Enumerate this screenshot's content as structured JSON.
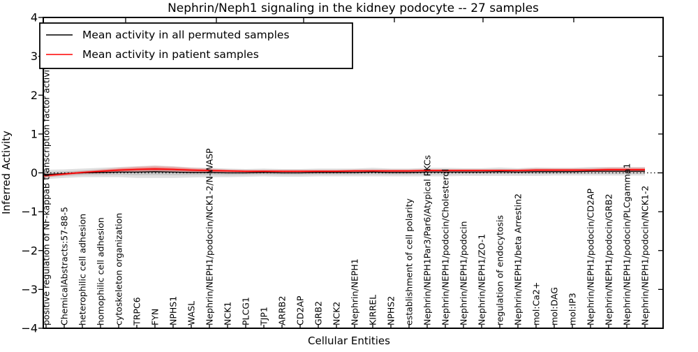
{
  "figure": {
    "title": "Nephrin/Neph1 signaling in the kidney podocyte -- 27 samples",
    "xlabel": "Cellular Entities",
    "ylabel": "Inferred Activity"
  },
  "legend": {
    "items": [
      {
        "label": "Mean activity in all permuted samples",
        "color": "#000000"
      },
      {
        "label": "Mean activity in patient samples",
        "color": "#ff0000"
      }
    ]
  },
  "chart_data": {
    "type": "line",
    "title": "Nephrin/Neph1 signaling in the kidney podocyte -- 27 samples",
    "xlabel": "Cellular Entities",
    "ylabel": "Inferred Activity",
    "ylim": [
      -4,
      4
    ],
    "ytick_labels": [
      "4",
      "3",
      "2",
      "1",
      "0",
      "−1",
      "−2",
      "−3",
      "−4"
    ],
    "ytick_values": [
      4,
      3,
      2,
      1,
      0,
      -1,
      -2,
      -3,
      -4
    ],
    "grid": false,
    "legend_position": "upper left",
    "zero_line": {
      "style": "dotted",
      "color": "#000000",
      "y": 0
    },
    "categories": [
      "positive regulation of NF-kappaB transcription factor activity",
      "ChemicalAbstracts:57-88-5",
      "heterophilic cell adhesion",
      "homophilic cell adhesion",
      "cytoskeleton organization",
      "TRPC6",
      "FYN",
      "NPHS1",
      "WASL",
      "Nephrin/NEPH1/podocin/NCK1-2/N-WASP",
      "NCK1",
      "PLCG1",
      "TJP1",
      "ARRB2",
      "CD2AP",
      "GRB2",
      "NCK2",
      "Nephrin/NEPH1",
      "KIRREL",
      "NPHS2",
      "establishment of cell polarity",
      "Nephrin/NEPH1Par3/Par6/Atypical PKCs",
      "Nephrin/NEPH1/podocin/Cholesterol",
      "Nephrin/NEPH1/podocin",
      "Nephrin/NEPH1/ZO-1",
      "regulation of endocytosis",
      "Nephrin/NEPH1/beta Arrestin2",
      "mol:Ca2+",
      "mol:DAG",
      "mol:IP3",
      "Nephrin/NEPH1/podocin/CD2AP",
      "Nephrin/NEPH1/podocin/GRB2",
      "Nephrin/NEPH1/podocin/PLCgamma1",
      "Nephrin/NEPH1/podocin/NCK1-2"
    ],
    "series": [
      {
        "name": "Mean activity in all permuted samples",
        "color": "#000000",
        "values": [
          -0.04,
          -0.02,
          0.0,
          0.01,
          0.02,
          0.02,
          0.03,
          0.02,
          0.01,
          0.01,
          0.0,
          0.0,
          0.01,
          0.0,
          0.0,
          0.01,
          0.01,
          0.01,
          0.02,
          0.01,
          0.01,
          0.02,
          0.02,
          0.02,
          0.02,
          0.03,
          0.02,
          0.03,
          0.03,
          0.03,
          0.04,
          0.04,
          0.04,
          0.04
        ]
      },
      {
        "name": "Mean activity in patient samples",
        "color": "#ff0000",
        "values": [
          -0.07,
          -0.03,
          0.01,
          0.04,
          0.07,
          0.09,
          0.1,
          0.09,
          0.07,
          0.06,
          0.05,
          0.04,
          0.04,
          0.04,
          0.04,
          0.04,
          0.04,
          0.05,
          0.05,
          0.05,
          0.05,
          0.06,
          0.06,
          0.06,
          0.06,
          0.06,
          0.06,
          0.07,
          0.07,
          0.07,
          0.07,
          0.08,
          0.08,
          0.08
        ]
      }
    ],
    "bands": [
      {
        "around_series": 0,
        "color": "#aaaaaa",
        "half_widths": [
          0.12,
          0.11,
          0.11,
          0.12,
          0.13,
          0.15,
          0.16,
          0.15,
          0.13,
          0.12,
          0.11,
          0.1,
          0.1,
          0.1,
          0.1,
          0.1,
          0.1,
          0.1,
          0.11,
          0.1,
          0.1,
          0.11,
          0.11,
          0.1,
          0.1,
          0.11,
          0.1,
          0.11,
          0.1,
          0.1,
          0.11,
          0.11,
          0.11,
          0.11
        ]
      },
      {
        "around_series": 1,
        "color": "#ff0000",
        "half_widths": [
          0.05,
          0.04,
          0.04,
          0.05,
          0.06,
          0.07,
          0.08,
          0.07,
          0.06,
          0.05,
          0.04,
          0.04,
          0.04,
          0.04,
          0.04,
          0.04,
          0.04,
          0.04,
          0.04,
          0.04,
          0.04,
          0.04,
          0.04,
          0.04,
          0.04,
          0.04,
          0.04,
          0.05,
          0.05,
          0.05,
          0.05,
          0.06,
          0.06,
          0.06
        ]
      }
    ]
  }
}
